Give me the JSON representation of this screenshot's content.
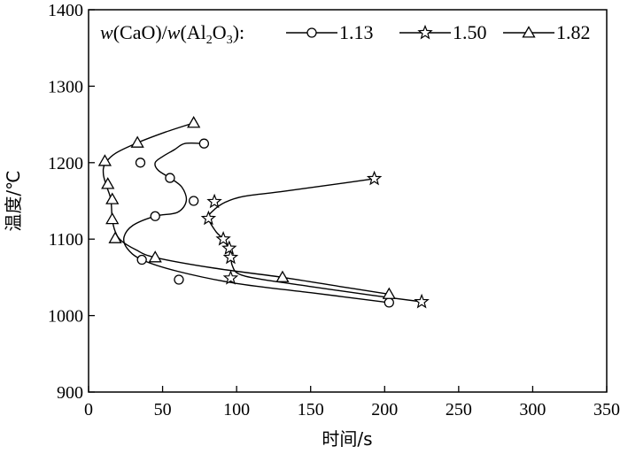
{
  "chart_data": {
    "type": "scatter",
    "xlabel": "时间/s",
    "ylabel": "温度/℃",
    "xlim": [
      0,
      350
    ],
    "ylim": [
      900,
      1400
    ],
    "xticks": [
      "0",
      "50",
      "100",
      "150",
      "200",
      "250",
      "300",
      "350"
    ],
    "yticks": [
      "900",
      "1000",
      "1100",
      "1200",
      "1300",
      "1400"
    ],
    "grid": false,
    "legend_position": "top",
    "legend_parts": {
      "w1": "w",
      "open1": "(CaO)/",
      "w2": "w",
      "open2": "(Al",
      "sub2": "2",
      "o": "O",
      "sub3": "3",
      "close": "):"
    },
    "series": [
      {
        "name": "1.13",
        "marker": "circle",
        "points": [
          [
            78,
            1225
          ],
          [
            35,
            1200
          ],
          [
            55,
            1180
          ],
          [
            71,
            1150
          ],
          [
            45,
            1130
          ],
          [
            36,
            1073
          ],
          [
            61,
            1047
          ],
          [
            203,
            1017
          ]
        ],
        "curve": [
          [
            78,
            1225
          ],
          [
            65,
            1225
          ],
          [
            58,
            1217
          ],
          [
            50,
            1208
          ],
          [
            45,
            1200
          ],
          [
            47,
            1190
          ],
          [
            55,
            1180
          ],
          [
            63,
            1168
          ],
          [
            66,
            1150
          ],
          [
            60,
            1135
          ],
          [
            45,
            1130
          ],
          [
            30,
            1118
          ],
          [
            24,
            1103
          ],
          [
            26,
            1088
          ],
          [
            36,
            1073
          ],
          [
            60,
            1058
          ],
          [
            100,
            1042
          ],
          [
            150,
            1030
          ],
          [
            203,
            1017
          ]
        ]
      },
      {
        "name": "1.50",
        "marker": "star",
        "points": [
          [
            193,
            1179
          ],
          [
            85,
            1149
          ],
          [
            81,
            1127
          ],
          [
            91,
            1100
          ],
          [
            95,
            1088
          ],
          [
            96,
            1076
          ],
          [
            96,
            1049
          ],
          [
            225,
            1018
          ]
        ],
        "curve": [
          [
            193,
            1179
          ],
          [
            160,
            1170
          ],
          [
            130,
            1162
          ],
          [
            105,
            1156
          ],
          [
            92,
            1148
          ],
          [
            84,
            1137
          ],
          [
            81,
            1127
          ],
          [
            86,
            1110
          ],
          [
            91,
            1100
          ],
          [
            94,
            1090
          ],
          [
            96,
            1078
          ],
          [
            97,
            1066
          ],
          [
            101,
            1055
          ],
          [
            115,
            1048
          ],
          [
            150,
            1038
          ],
          [
            190,
            1027
          ],
          [
            225,
            1018
          ]
        ]
      },
      {
        "name": "1.82",
        "marker": "triangle",
        "points": [
          [
            71,
            1252
          ],
          [
            33,
            1226
          ],
          [
            11,
            1202
          ],
          [
            13,
            1172
          ],
          [
            16,
            1152
          ],
          [
            16,
            1126
          ],
          [
            18,
            1101
          ],
          [
            45,
            1076
          ],
          [
            131,
            1050
          ],
          [
            203,
            1028
          ]
        ],
        "curve": [
          [
            71,
            1252
          ],
          [
            52,
            1240
          ],
          [
            33,
            1226
          ],
          [
            18,
            1212
          ],
          [
            11,
            1198
          ],
          [
            10,
            1185
          ],
          [
            12,
            1170
          ],
          [
            15,
            1152
          ],
          [
            16,
            1126
          ],
          [
            18,
            1110
          ],
          [
            22,
            1098
          ],
          [
            32,
            1086
          ],
          [
            45,
            1076
          ],
          [
            85,
            1062
          ],
          [
            131,
            1050
          ],
          [
            170,
            1038
          ],
          [
            203,
            1028
          ]
        ]
      }
    ]
  }
}
